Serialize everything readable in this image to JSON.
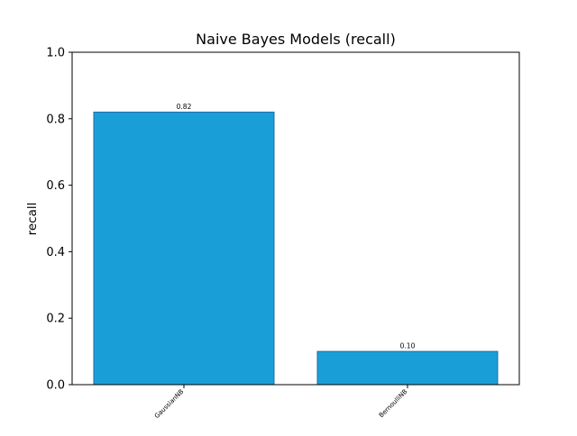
{
  "chart_data": {
    "type": "bar",
    "title": "Naive Bayes Models (recall)",
    "xlabel": "",
    "ylabel": "recall",
    "categories": [
      "GaussianNB",
      "BernoulliNB"
    ],
    "values": [
      0.82,
      0.1
    ],
    "value_labels": [
      "0.82",
      "0.10"
    ],
    "ylim": [
      0,
      1.0
    ],
    "yticks": [
      0.0,
      0.2,
      0.4,
      0.6,
      0.8,
      1.0
    ],
    "ytick_labels": [
      "0.0",
      "0.2",
      "0.4",
      "0.6",
      "0.8",
      "1.0"
    ],
    "grid": false,
    "legend": "none",
    "bar_color": "#1a9ed8",
    "bar_edge_color": "#1f6fa8"
  }
}
